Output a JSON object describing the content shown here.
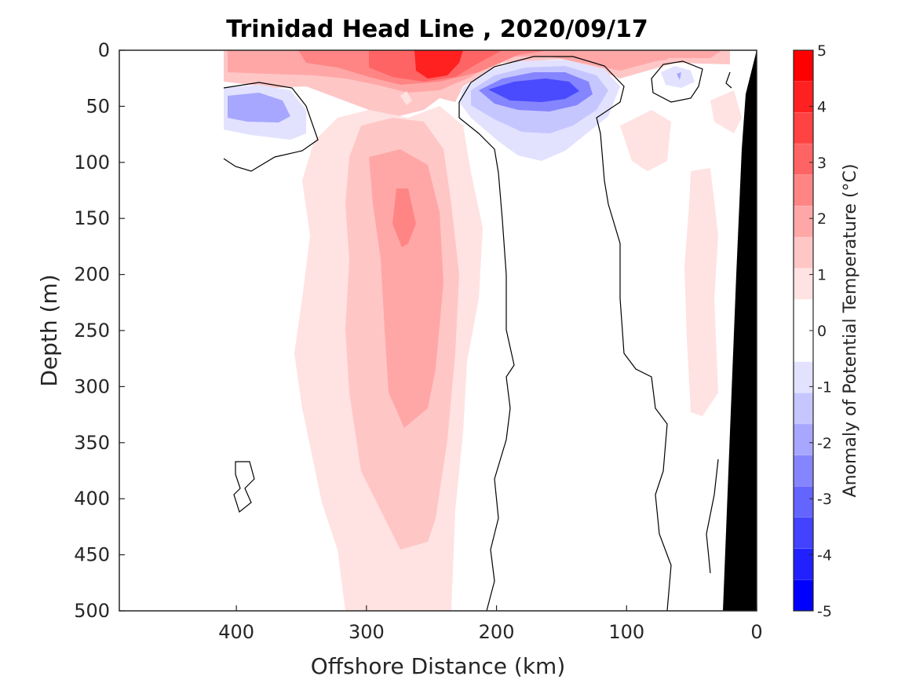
{
  "chart_data": {
    "type": "heatmap",
    "title": "Trinidad Head Line , 2020/09/17",
    "xlabel": "Offshore Distance (km)",
    "ylabel": "Depth (m)",
    "xlim": [
      490,
      0
    ],
    "ylim": [
      0,
      500
    ],
    "x_ticks": [
      "400",
      "300",
      "200",
      "100",
      "0"
    ],
    "y_ticks": [
      "0",
      "50",
      "100",
      "150",
      "200",
      "250",
      "300",
      "350",
      "400",
      "450",
      "500"
    ],
    "colorbar": {
      "label": "Anomaly of Potential Temperature (°C)",
      "ticks": [
        "5",
        "4",
        "3",
        "2",
        "1",
        "0",
        "-1",
        "-2",
        "-3",
        "-4",
        "-5"
      ],
      "range": [
        -5,
        5
      ],
      "colors": [
        "#ff0000",
        "#ff2121",
        "#ff4242",
        "#ff6464",
        "#ff8585",
        "#ffa7a7",
        "#ffc6c6",
        "#ffe2e2",
        "#ffffff",
        "#ffffff",
        "#e2e2ff",
        "#c6c6ff",
        "#a7a7ff",
        "#8585ff",
        "#6464ff",
        "#4242ff",
        "#2121ff",
        "#0000ff"
      ]
    },
    "colors": {
      "warm_1": "#ffe2e2",
      "warm_1_5": "#ffc6c6",
      "warm_2": "#ffa7a7",
      "warm_2_5": "#ff8585",
      "warm_3": "#ff6464",
      "warm_4": "#ff2020",
      "cool_1": "#e2e2ff",
      "cool_1_5": "#c6c6ff",
      "cool_2": "#a7a7ff",
      "cool_2_5": "#8585ff",
      "cool_3": "#6464ff",
      "cool_3_5": "#4a4aff",
      "bathymetry": "#000000",
      "contour": "#000000"
    },
    "regions": [
      {
        "name": "surface-warm-layer",
        "min": 1.5,
        "x_range": [
          410,
          20
        ],
        "depth_range": [
          0,
          25
        ]
      },
      {
        "name": "surface-warm-core",
        "min": 4.0,
        "x_range": [
          270,
          230
        ],
        "depth_range": [
          0,
          25
        ]
      },
      {
        "name": "offshore-warm-plume",
        "min": 0.5,
        "x_range": [
          350,
          230
        ],
        "depth_range": [
          25,
          500
        ]
      },
      {
        "name": "warm-plume-core",
        "min": 2.0,
        "x_range": [
          290,
          240
        ],
        "depth_range": [
          80,
          350
        ]
      },
      {
        "name": "deep-cold-eddy",
        "max": -0.5,
        "x_range": [
          410,
          350
        ],
        "depth_range": [
          30,
          80
        ]
      },
      {
        "name": "nearshore-cold-eddy",
        "max": -3.0,
        "x_range": [
          230,
          130
        ],
        "depth_range": [
          10,
          100
        ]
      },
      {
        "name": "small-cold-spot",
        "max": -0.5,
        "x_range": [
          75,
          45
        ],
        "depth_range": [
          15,
          35
        ]
      },
      {
        "name": "nearshore-warm-filament",
        "min": 0.5,
        "x_range": [
          60,
          40
        ],
        "depth_range": [
          100,
          330
        ]
      }
    ]
  }
}
